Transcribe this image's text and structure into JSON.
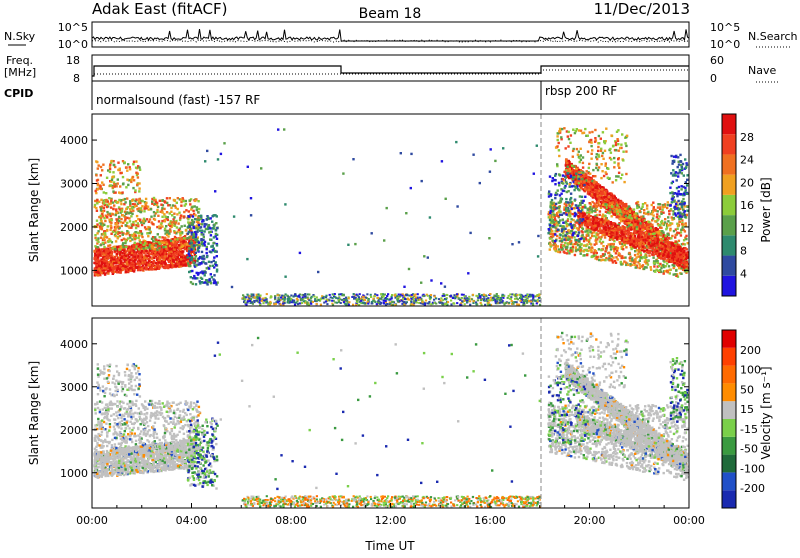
{
  "header": {
    "station": "Adak East (fitACF)",
    "beam": "Beam 18",
    "date": "11/Dec/2013"
  },
  "panels": {
    "nsky": {
      "left_label": "N.Sky",
      "right_label": "N.Search",
      "left_ticks": [
        "10^5",
        "10^0"
      ],
      "right_ticks": [
        "10^5",
        "10^0"
      ]
    },
    "freq": {
      "left_label_1": "Freq.",
      "left_label_2": "[MHz]",
      "right_label": "Nave",
      "left_ticks": [
        "18",
        "8"
      ],
      "right_ticks": [
        "60",
        "0"
      ]
    },
    "cpid": {
      "label": "CPID",
      "modes": [
        "normalsound (fast) -157 RF",
        "rbsp 200 RF"
      ],
      "mode_change_hour": 18
    }
  },
  "chart_data": [
    {
      "type": "heatmap",
      "name": "power",
      "ylabel": "Slant Range [km]",
      "y_ticks": [
        1000,
        2000,
        3000,
        4000
      ],
      "ylim": [
        180,
        4600
      ],
      "xlim": [
        0,
        24
      ],
      "colorbar": {
        "label": "Power [dB]",
        "ticks": [
          "28",
          "24",
          "20",
          "16",
          "12",
          "8",
          "4"
        ],
        "colors": [
          "#2014e0",
          "#2f4aa0",
          "#2e8a6e",
          "#5aa04a",
          "#8ccc3a",
          "#f0a020",
          "#f07020",
          "#f04020",
          "#e01010"
        ]
      }
    },
    {
      "type": "heatmap",
      "name": "velocity",
      "ylabel": "Slant Range [km]",
      "y_ticks": [
        1000,
        2000,
        3000,
        4000
      ],
      "ylim": [
        180,
        4600
      ],
      "xlim": [
        0,
        24
      ],
      "xlabel": "Time UT",
      "x_ticks": [
        "00:00",
        "04:00",
        "08:00",
        "12:00",
        "16:00",
        "20:00",
        "00:00"
      ],
      "colorbar": {
        "label": "Velocity [m s⁻¹]",
        "ticks": [
          "200",
          "100",
          "50",
          "15",
          "-15",
          "-50",
          "-100",
          "-200"
        ],
        "colors": [
          "#1a2ab0",
          "#2050c8",
          "#1f6a3a",
          "#3a9a40",
          "#7ad04a",
          "#c0c0c0",
          "#ff8c00",
          "#ff6a00",
          "#ff4000",
          "#e00000"
        ]
      }
    }
  ]
}
